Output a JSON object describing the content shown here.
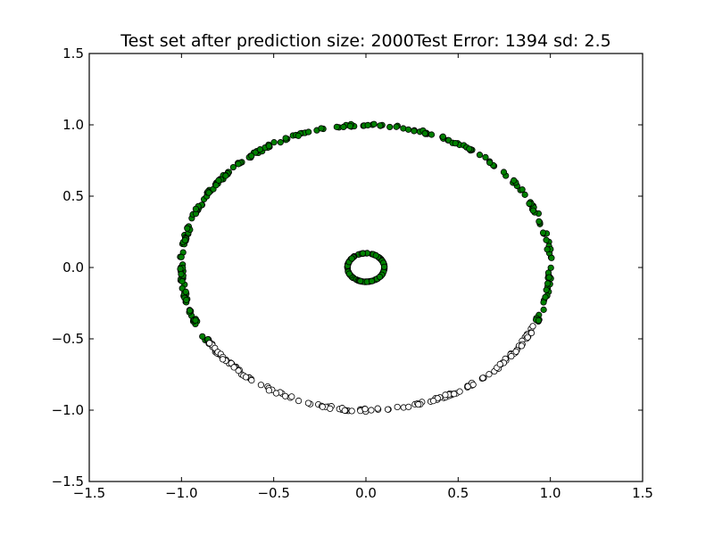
{
  "chart_data": {
    "type": "scatter",
    "title": "Test set after prediction size: 2000Test Error: 1394 sd: 2.5",
    "xlabel": "",
    "ylabel": "",
    "xlim": [
      -1.5,
      1.5
    ],
    "ylim": [
      -1.5,
      1.5
    ],
    "grid": false,
    "legend": "none",
    "x_ticks": [
      -1.5,
      -1.0,
      -0.5,
      0.0,
      0.5,
      1.0,
      1.5
    ],
    "y_ticks": [
      -1.5,
      -1.0,
      -0.5,
      0.0,
      0.5,
      1.0,
      1.5
    ],
    "x_tick_labels": [
      "−1.5",
      "−1.0",
      "−0.5",
      "0.0",
      "0.5",
      "1.0",
      "1.5"
    ],
    "y_tick_labels": [
      "−1.5",
      "−1.0",
      "−0.5",
      "0.0",
      "0.5",
      "1.0",
      "1.5"
    ],
    "series": [
      {
        "color": "#008000",
        "shape": "circle",
        "description": "outer ring upper part (angle -148 to 328 deg with edge at 1.0)",
        "rings": [
          {
            "radius": 1.0,
            "angle_start_deg": -22,
            "angle_end_deg": 212,
            "count": 260
          },
          {
            "radius": 0.1,
            "angle_start_deg": 0,
            "angle_end_deg": 360,
            "count": 140
          }
        ]
      },
      {
        "color": "#ffffff",
        "shape": "circle",
        "rings": [
          {
            "radius": 1.0,
            "angle_start_deg": 212,
            "angle_end_deg": 338,
            "count": 150
          }
        ]
      }
    ]
  }
}
